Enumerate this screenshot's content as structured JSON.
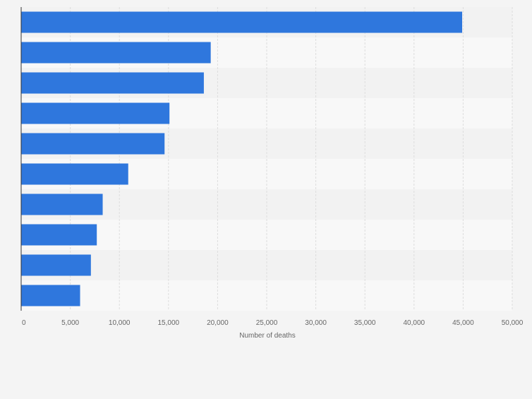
{
  "chart_data": {
    "type": "bar",
    "orientation": "horizontal",
    "categories": [
      "",
      "",
      "",
      "",
      "",
      "",
      "",
      "",
      "",
      ""
    ],
    "values": [
      44900,
      19300,
      18600,
      15100,
      14600,
      10900,
      8300,
      7700,
      7100,
      6000
    ],
    "title": "",
    "xlabel": "Number of deaths",
    "ylabel": "",
    "xlim": [
      0,
      50000
    ],
    "ticks": [
      0,
      5000,
      10000,
      15000,
      20000,
      25000,
      30000,
      35000,
      40000,
      45000,
      50000
    ],
    "tick_labels": [
      "0",
      "5,000",
      "10,000",
      "15,000",
      "20,000",
      "25,000",
      "30,000",
      "35,000",
      "40,000",
      "45,000",
      "50,000"
    ],
    "grid": true,
    "legend": "none",
    "colors": {
      "bar": "#2f77dd",
      "band_light": "#f8f8f8",
      "band_dark": "#f2f2f2",
      "grid": "#dddddd",
      "axis": "#333333",
      "tick_text": "#666666",
      "page": "#f4f4f4"
    }
  }
}
